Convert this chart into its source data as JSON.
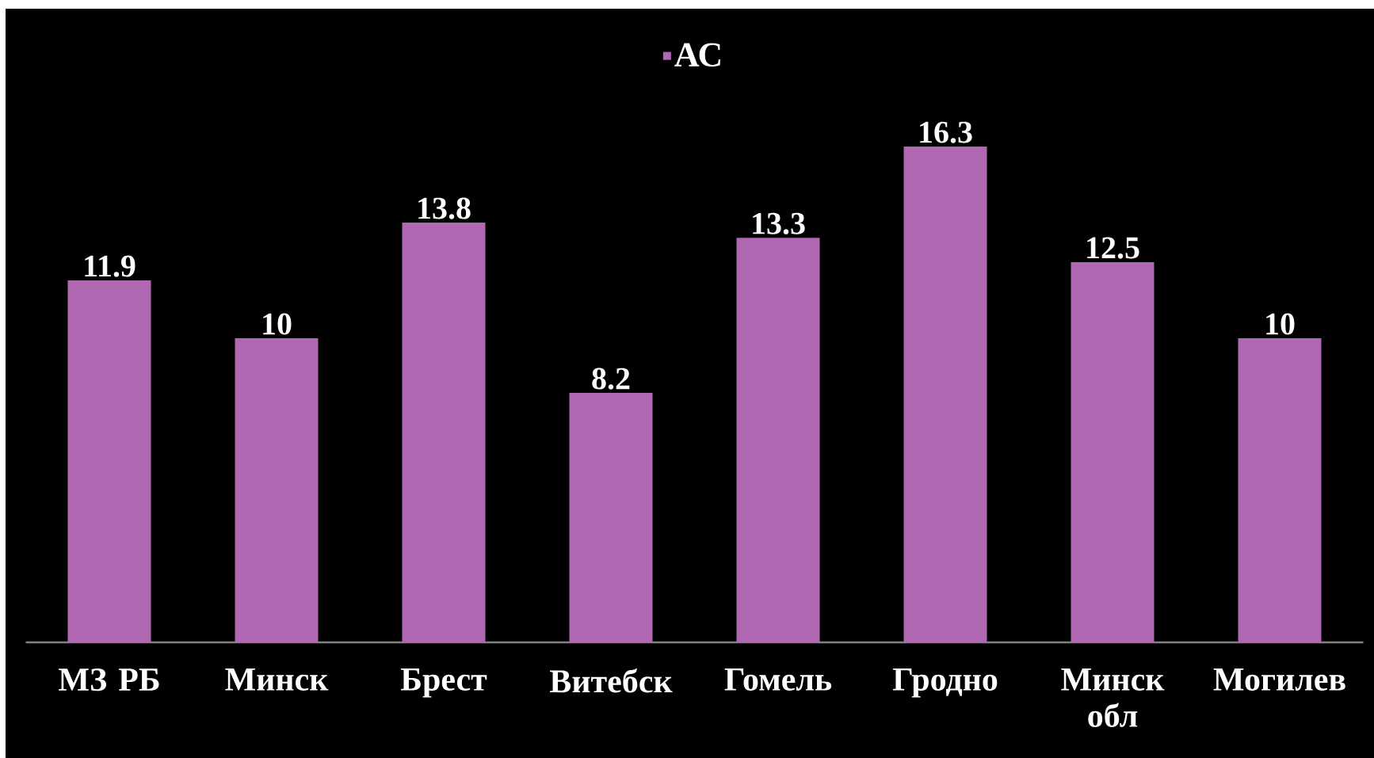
{
  "chart_data": {
    "type": "bar",
    "categories": [
      "МЗ РБ",
      "Минск",
      "Брест",
      "Витебск",
      "Гомель",
      "Гродно",
      "Минск обл",
      "Могилев"
    ],
    "series": [
      {
        "name": "АС",
        "color": "#b068b2",
        "values": [
          11.9,
          10,
          13.8,
          8.2,
          13.3,
          16.3,
          12.5,
          10
        ]
      }
    ],
    "data_labels": true,
    "legend": "top"
  }
}
